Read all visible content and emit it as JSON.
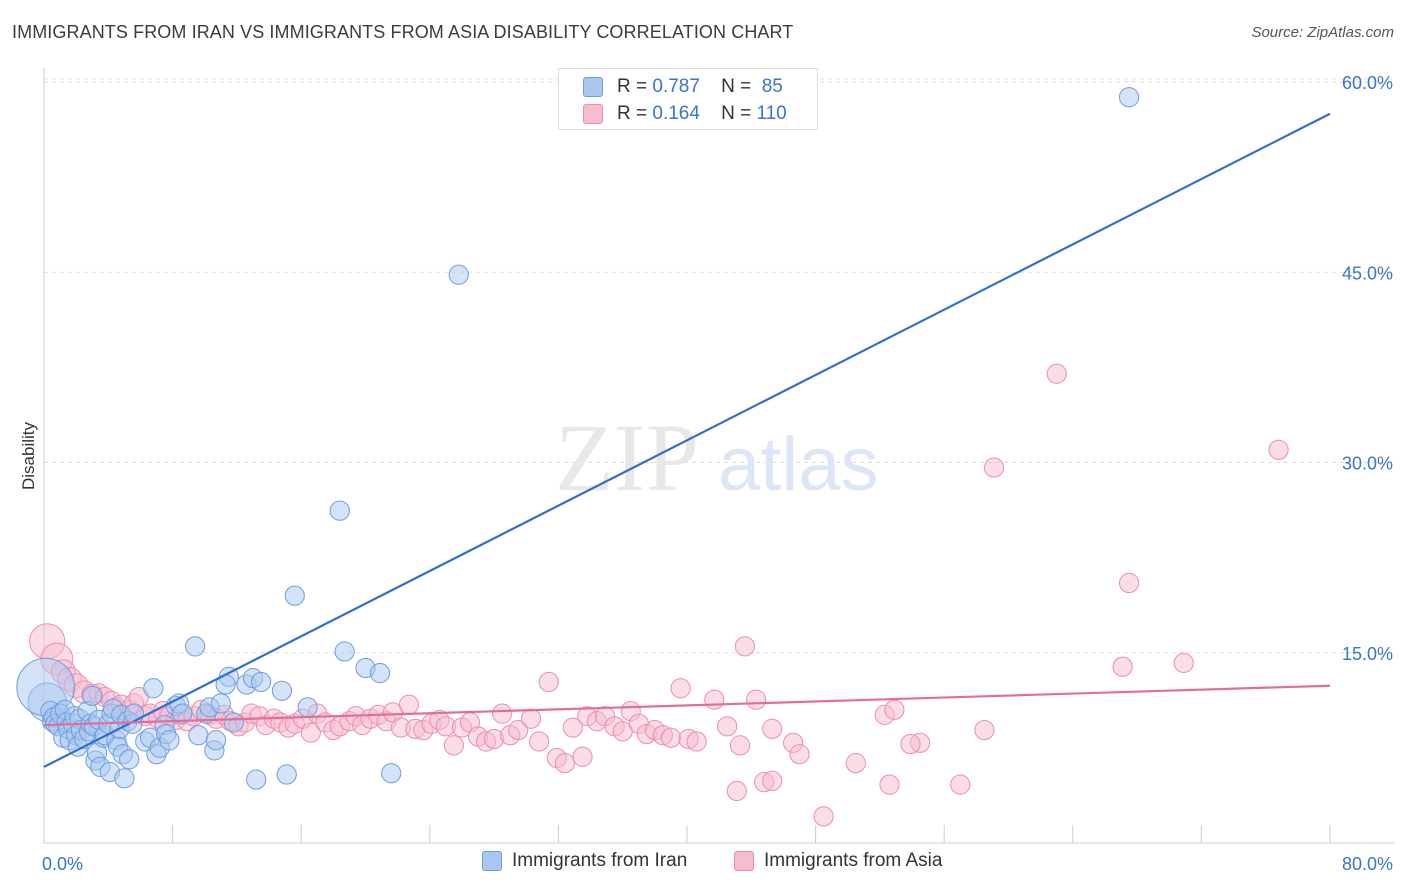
{
  "title": "IMMIGRANTS FROM IRAN VS IMMIGRANTS FROM ASIA DISABILITY CORRELATION CHART",
  "source": "Source: ZipAtlas.com",
  "watermark": {
    "zip": "ZIP",
    "atlas": "atlas"
  },
  "stats": {
    "iran": {
      "r_label": "R =",
      "r_value": "0.787",
      "n_label": "N =",
      "n_value": "85"
    },
    "asia": {
      "r_label": "R =",
      "r_value": "0.164",
      "n_label": "N =",
      "n_value": "110"
    }
  },
  "legend": {
    "iran": "Immigrants from Iran",
    "asia": "Immigrants from Asia"
  },
  "colors": {
    "iran_fill": "#a9c7ef",
    "iran_stroke": "#6d9ee0",
    "iran_line": "#2f6fcf",
    "asia_fill": "#f6bcd0",
    "asia_stroke": "#ee8db0",
    "asia_line": "#e46d98",
    "axis_text": "#3a74d0",
    "grid": "#dddddd"
  },
  "chart_data": {
    "type": "scatter",
    "title": "IMMIGRANTS FROM IRAN VS IMMIGRANTS FROM ASIA DISABILITY CORRELATION CHART",
    "xlabel": "",
    "ylabel": "Disability",
    "xlim": [
      0,
      80
    ],
    "ylim": [
      0,
      60
    ],
    "x_tick_labels": [
      "0.0%",
      "80.0%"
    ],
    "y_tick_labels": [
      "15.0%",
      "30.0%",
      "45.0%",
      "60.0%"
    ],
    "y_ticks": [
      15,
      30,
      45,
      60
    ],
    "grid": true,
    "legend_position": "bottom",
    "series": [
      {
        "name": "Immigrants from Iran",
        "r": 0.787,
        "n": 85,
        "trend": {
          "x": [
            0,
            80
          ],
          "y": [
            6.0,
            57.5
          ]
        },
        "points": [
          [
            0.2,
            11.1,
            2.4
          ],
          [
            0.1,
            12.3,
            3.6
          ],
          [
            0.4,
            10.4,
            1.2
          ],
          [
            0.5,
            9.6,
            1.2
          ],
          [
            0.6,
            9.9,
            1.2
          ],
          [
            0.7,
            9.4,
            1.2
          ],
          [
            0.9,
            9.2,
            1.2
          ],
          [
            1.0,
            10.2,
            1.2
          ],
          [
            1.2,
            8.3,
            1.2
          ],
          [
            1.3,
            10.5,
            1.2
          ],
          [
            1.4,
            9.5,
            1.2
          ],
          [
            1.5,
            9.0,
            1.2
          ],
          [
            1.6,
            8.1,
            1.2
          ],
          [
            1.8,
            9.4,
            1.2
          ],
          [
            1.9,
            10.0,
            1.2
          ],
          [
            2.0,
            8.5,
            1.2
          ],
          [
            2.1,
            7.6,
            1.2
          ],
          [
            2.2,
            9.8,
            1.2
          ],
          [
            2.3,
            8.9,
            1.2
          ],
          [
            2.5,
            8.2,
            1.2
          ],
          [
            2.7,
            10.4,
            1.2
          ],
          [
            2.8,
            8.8,
            1.2
          ],
          [
            2.9,
            9.4,
            1.2
          ],
          [
            3.0,
            11.6,
            1.2
          ],
          [
            3.1,
            9.2,
            1.2
          ],
          [
            3.2,
            6.5,
            1.2
          ],
          [
            3.3,
            7.1,
            1.2
          ],
          [
            3.4,
            9.7,
            1.2
          ],
          [
            3.5,
            6.0,
            1.2
          ],
          [
            3.7,
            8.3,
            1.2
          ],
          [
            3.8,
            8.5,
            1.2
          ],
          [
            4.0,
            9.4,
            1.2
          ],
          [
            4.1,
            5.6,
            1.2
          ],
          [
            4.2,
            10.2,
            1.2
          ],
          [
            4.3,
            10.6,
            1.2
          ],
          [
            4.5,
            8.1,
            1.2
          ],
          [
            4.6,
            7.6,
            1.2
          ],
          [
            4.7,
            9.0,
            1.2
          ],
          [
            4.8,
            10.1,
            1.2
          ],
          [
            4.9,
            7.0,
            1.2
          ],
          [
            5.0,
            5.1,
            1.2
          ],
          [
            5.2,
            9.6,
            1.2
          ],
          [
            5.3,
            6.6,
            1.2
          ],
          [
            5.5,
            9.4,
            1.2
          ],
          [
            5.6,
            10.2,
            1.2
          ],
          [
            6.3,
            8.0,
            1.2
          ],
          [
            6.6,
            8.3,
            1.2
          ],
          [
            6.8,
            12.2,
            1.2
          ],
          [
            7.0,
            7.0,
            1.2
          ],
          [
            7.2,
            7.5,
            1.2
          ],
          [
            7.5,
            9.3,
            1.2
          ],
          [
            7.6,
            8.6,
            1.2
          ],
          [
            7.8,
            8.1,
            1.2
          ],
          [
            8.2,
            10.8,
            1.2
          ],
          [
            8.4,
            11.0,
            1.2
          ],
          [
            8.6,
            10.2,
            1.2
          ],
          [
            9.4,
            15.5,
            1.2
          ],
          [
            9.6,
            8.5,
            1.2
          ],
          [
            10.1,
            10.2,
            1.2
          ],
          [
            10.3,
            10.7,
            1.2
          ],
          [
            10.6,
            7.3,
            1.2
          ],
          [
            10.7,
            8.1,
            1.2
          ],
          [
            11.0,
            11.0,
            1.2
          ],
          [
            11.5,
            13.1,
            1.2
          ],
          [
            11.3,
            12.5,
            1.2
          ],
          [
            11.8,
            9.5,
            1.2
          ],
          [
            12.6,
            12.5,
            1.2
          ],
          [
            13.0,
            13.0,
            1.2
          ],
          [
            13.5,
            12.7,
            1.2
          ],
          [
            13.2,
            5.0,
            1.2
          ],
          [
            14.8,
            12.0,
            1.2
          ],
          [
            15.1,
            5.4,
            1.2
          ],
          [
            15.6,
            19.5,
            1.2
          ],
          [
            16.4,
            10.7,
            1.2
          ],
          [
            18.4,
            26.2,
            1.2
          ],
          [
            18.7,
            15.1,
            1.2
          ],
          [
            20.0,
            13.8,
            1.2
          ],
          [
            20.9,
            13.4,
            1.2
          ],
          [
            21.6,
            5.5,
            1.2
          ],
          [
            25.8,
            44.8,
            1.2
          ],
          [
            67.5,
            58.8,
            1.2
          ]
        ]
      },
      {
        "name": "Immigrants from Asia",
        "r": 0.164,
        "n": 110,
        "trend": {
          "x": [
            0,
            80
          ],
          "y": [
            9.3,
            12.4
          ]
        },
        "points": [
          [
            0.2,
            15.9,
            2.2
          ],
          [
            0.8,
            14.5,
            2.0
          ],
          [
            1.2,
            13.5,
            1.5
          ],
          [
            1.6,
            12.9,
            1.5
          ],
          [
            2.0,
            12.4,
            1.5
          ],
          [
            2.5,
            11.9,
            1.4
          ],
          [
            3.0,
            11.7,
            1.3
          ],
          [
            3.4,
            11.8,
            1.2
          ],
          [
            3.8,
            11.5,
            1.2
          ],
          [
            4.2,
            11.2,
            1.2
          ],
          [
            4.5,
            10.7,
            1.2
          ],
          [
            4.8,
            10.9,
            1.2
          ],
          [
            5.3,
            10.5,
            1.2
          ],
          [
            5.6,
            11.0,
            1.2
          ],
          [
            5.9,
            11.5,
            1.2
          ],
          [
            6.3,
            10.0,
            1.2
          ],
          [
            6.6,
            10.2,
            1.2
          ],
          [
            7.1,
            9.8,
            1.2
          ],
          [
            7.4,
            10.4,
            1.2
          ],
          [
            7.8,
            10.0,
            1.2
          ],
          [
            8.2,
            9.7,
            1.2
          ],
          [
            8.5,
            10.1,
            1.2
          ],
          [
            8.9,
            9.6,
            1.2
          ],
          [
            9.3,
            10.0,
            1.2
          ],
          [
            9.8,
            10.5,
            1.2
          ],
          [
            10.3,
            10.1,
            1.2
          ],
          [
            10.7,
            9.8,
            1.2
          ],
          [
            11.2,
            10.1,
            1.2
          ],
          [
            11.6,
            9.6,
            1.2
          ],
          [
            12.1,
            9.2,
            1.2
          ],
          [
            12.5,
            9.5,
            1.2
          ],
          [
            12.9,
            10.2,
            1.2
          ],
          [
            13.4,
            10.0,
            1.2
          ],
          [
            13.8,
            9.3,
            1.2
          ],
          [
            14.3,
            9.8,
            1.2
          ],
          [
            14.7,
            9.5,
            1.2
          ],
          [
            15.2,
            9.1,
            1.2
          ],
          [
            15.6,
            9.4,
            1.2
          ],
          [
            16.1,
            9.8,
            1.2
          ],
          [
            16.6,
            8.7,
            1.2
          ],
          [
            17.0,
            10.2,
            1.2
          ],
          [
            17.5,
            9.5,
            1.2
          ],
          [
            18.0,
            8.9,
            1.2
          ],
          [
            18.4,
            9.2,
            1.2
          ],
          [
            19.0,
            9.6,
            1.2
          ],
          [
            19.4,
            10.0,
            1.2
          ],
          [
            19.8,
            9.3,
            1.2
          ],
          [
            20.3,
            9.8,
            1.2
          ],
          [
            20.8,
            10.1,
            1.2
          ],
          [
            21.3,
            9.6,
            1.2
          ],
          [
            21.7,
            10.3,
            1.2
          ],
          [
            22.2,
            9.1,
            1.2
          ],
          [
            22.7,
            10.9,
            1.2
          ],
          [
            23.1,
            9.0,
            1.2
          ],
          [
            23.6,
            8.9,
            1.2
          ],
          [
            24.1,
            9.4,
            1.2
          ],
          [
            24.6,
            9.7,
            1.2
          ],
          [
            25.0,
            9.2,
            1.2
          ],
          [
            25.5,
            7.7,
            1.2
          ],
          [
            26.0,
            9.1,
            1.2
          ],
          [
            26.5,
            9.5,
            1.2
          ],
          [
            27.0,
            8.4,
            1.2
          ],
          [
            27.5,
            8.0,
            1.2
          ],
          [
            28.0,
            8.2,
            1.2
          ],
          [
            28.5,
            10.2,
            1.2
          ],
          [
            29.0,
            8.5,
            1.2
          ],
          [
            29.5,
            8.9,
            1.2
          ],
          [
            30.3,
            9.8,
            1.2
          ],
          [
            30.8,
            8.0,
            1.2
          ],
          [
            31.4,
            12.7,
            1.2
          ],
          [
            31.9,
            6.7,
            1.2
          ],
          [
            32.4,
            6.3,
            1.2
          ],
          [
            32.9,
            9.1,
            1.2
          ],
          [
            33.5,
            6.8,
            1.2
          ],
          [
            33.8,
            10.0,
            1.2
          ],
          [
            34.4,
            9.6,
            1.2
          ],
          [
            34.9,
            10.0,
            1.2
          ],
          [
            35.5,
            9.2,
            1.2
          ],
          [
            36.0,
            8.8,
            1.2
          ],
          [
            36.5,
            10.4,
            1.2
          ],
          [
            37.0,
            9.4,
            1.2
          ],
          [
            37.5,
            8.6,
            1.2
          ],
          [
            38.0,
            8.9,
            1.2
          ],
          [
            38.5,
            8.5,
            1.2
          ],
          [
            39.0,
            8.3,
            1.2
          ],
          [
            39.6,
            12.2,
            1.2
          ],
          [
            40.1,
            8.2,
            1.2
          ],
          [
            40.6,
            8.0,
            1.2
          ],
          [
            41.7,
            11.3,
            1.2
          ],
          [
            42.5,
            9.2,
            1.2
          ],
          [
            43.3,
            7.7,
            1.2
          ],
          [
            43.6,
            15.5,
            1.2
          ],
          [
            43.1,
            4.1,
            1.2
          ],
          [
            44.3,
            11.3,
            1.2
          ],
          [
            44.8,
            4.8,
            1.2
          ],
          [
            45.3,
            4.9,
            1.2
          ],
          [
            45.3,
            9.0,
            1.2
          ],
          [
            46.6,
            7.9,
            1.2
          ],
          [
            47.0,
            7.0,
            1.2
          ],
          [
            48.5,
            2.1,
            1.2
          ],
          [
            50.5,
            6.3,
            1.2
          ],
          [
            52.3,
            10.1,
            1.2
          ],
          [
            52.9,
            10.5,
            1.2
          ],
          [
            52.6,
            4.6,
            1.2
          ],
          [
            54.5,
            7.9,
            1.2
          ],
          [
            57.0,
            4.6,
            1.2
          ],
          [
            58.5,
            8.9,
            1.2
          ],
          [
            59.1,
            29.6,
            1.2
          ],
          [
            63.0,
            37.0,
            1.2
          ],
          [
            67.1,
            13.9,
            1.2
          ],
          [
            67.5,
            20.5,
            1.2
          ],
          [
            70.9,
            14.2,
            1.2
          ],
          [
            76.8,
            31.0,
            1.2
          ],
          [
            53.9,
            7.8,
            1.2
          ]
        ]
      }
    ]
  }
}
